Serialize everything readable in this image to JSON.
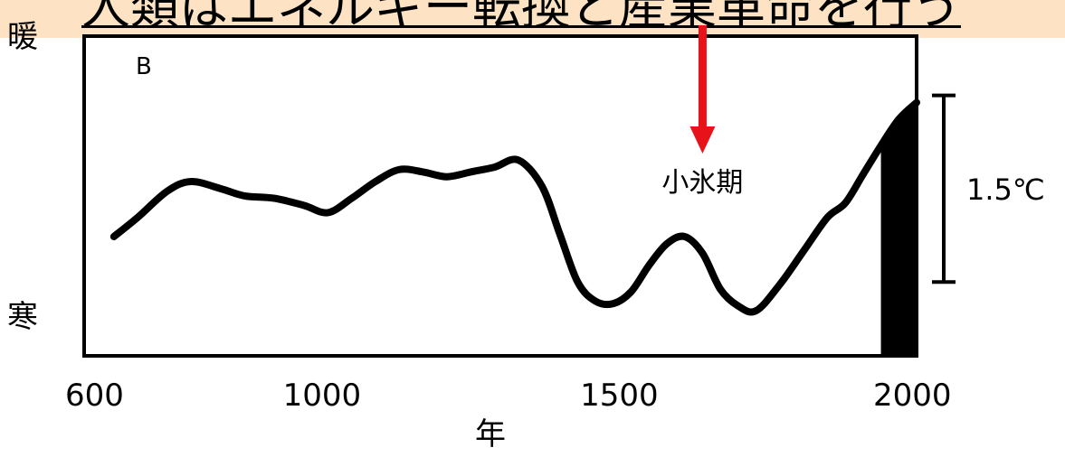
{
  "banner": {
    "text": "人類はエネルギー転換と産業革命を行う",
    "background": "#fde3c4"
  },
  "chart_data": {
    "type": "line",
    "title": "",
    "panel_label": "B",
    "xlabel": "年",
    "ylabel_top": "暖",
    "ylabel_bottom": "寒",
    "xlim": [
      600,
      2000
    ],
    "ylim": [
      0,
      1
    ],
    "x_ticks": [
      600,
      1000,
      1500,
      2000
    ],
    "grid": false,
    "series": [
      {
        "x": [
          650,
          690,
          740,
          780,
          830,
          870,
          920,
          970,
          1010,
          1050,
          1090,
          1130,
          1170,
          1210,
          1250,
          1290,
          1330,
          1370,
          1400,
          1430,
          1460,
          1490,
          1520,
          1550,
          1580,
          1610,
          1640,
          1670,
          1700,
          1730,
          1770,
          1810,
          1850,
          1880,
          1910,
          1940,
          1970,
          2000
        ],
        "values": [
          0.37,
          0.45,
          0.56,
          0.6,
          0.57,
          0.54,
          0.53,
          0.5,
          0.47,
          0.53,
          0.6,
          0.65,
          0.64,
          0.62,
          0.64,
          0.66,
          0.69,
          0.58,
          0.38,
          0.18,
          0.1,
          0.09,
          0.14,
          0.25,
          0.34,
          0.37,
          0.3,
          0.15,
          0.08,
          0.06,
          0.17,
          0.31,
          0.45,
          0.51,
          0.63,
          0.75,
          0.86,
          0.93
        ]
      }
    ],
    "annotations": [
      {
        "text": "小氷期",
        "x": 1640,
        "y": 0.66,
        "arrow": true
      }
    ],
    "recent_fill": {
      "x_start": 1940,
      "x_end": 2000,
      "color": "#000000"
    },
    "scale_bar": {
      "label": "1.5℃",
      "y_bottom": 0.18,
      "y_top": 0.96
    },
    "arrow_color": "#e8121a"
  }
}
